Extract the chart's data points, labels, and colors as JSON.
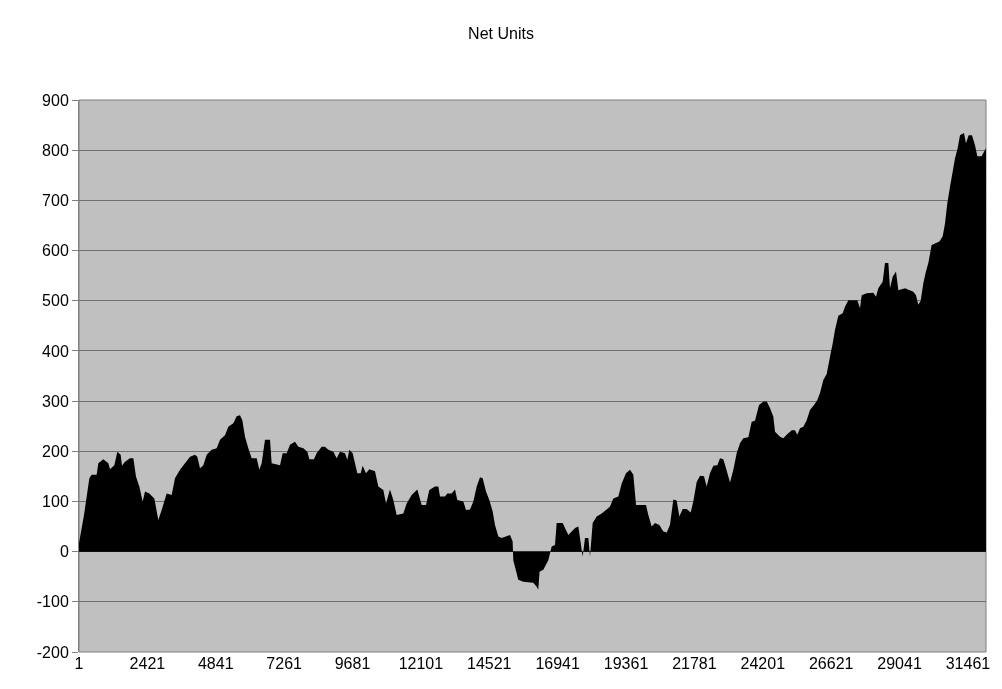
{
  "chart_data": {
    "type": "area",
    "title": "Net Units",
    "color": "#000000",
    "x": [
      1,
      96,
      178,
      367,
      449,
      626,
      685,
      862,
      1039,
      1098,
      1251,
      1358,
      1475,
      1522,
      1629,
      1806,
      1924,
      2019,
      2136,
      2254,
      2337,
      2490,
      2667,
      2808,
      2927,
      3104,
      3281,
      3398,
      3575,
      3753,
      3930,
      4106,
      4189,
      4283,
      4401,
      4520,
      4696,
      4873,
      4991,
      5168,
      5286,
      5463,
      5580,
      5699,
      5781,
      5876,
      5993,
      6112,
      6289,
      6383,
      6465,
      6583,
      6761,
      6819,
      7115,
      7209,
      7351,
      7468,
      7645,
      7764,
      7941,
      8082,
      8153,
      8317,
      8412,
      8589,
      8707,
      8825,
      9002,
      9120,
      9238,
      9415,
      9498,
      9568,
      9686,
      9769,
      9851,
      9969,
      10040,
      10158,
      10275,
      10476,
      10594,
      10771,
      10866,
      11007,
      11125,
      11243,
      11479,
      11597,
      11775,
      11974,
      12128,
      12281,
      12399,
      12600,
      12718,
      12777,
      12954,
      13036,
      13190,
      13308,
      13390,
      13603,
      13697,
      13839,
      13957,
      14075,
      14193,
      14287,
      14405,
      14522,
      14641,
      14723,
      14841,
      14960,
      15254,
      15348,
      15371,
      15547,
      15724,
      16078,
      16198,
      16255,
      16300,
      16433,
      16610,
      16729,
      16846,
      16905,
      17118,
      17201,
      17318,
      17437,
      17555,
      17672,
      17732,
      17826,
      17908,
      18027,
      18085,
      18180,
      18321,
      18498,
      18652,
      18794,
      18911,
      19088,
      19207,
      19359,
      19501,
      19619,
      19714,
      20068,
      20150,
      20268,
      20386,
      20539,
      20681,
      20799,
      20916,
      21035,
      21152,
      21247,
      21365,
      21507,
      21648,
      21742,
      21861,
      21979,
      22120,
      22214,
      22332,
      22451,
      22592,
      22687,
      22804,
      22899,
      23041,
      23158,
      23276,
      23394,
      23512,
      23689,
      23807,
      23925,
      24067,
      24220,
      24338,
      24456,
      24574,
      24633,
      24810,
      24928,
      25046,
      25223,
      25341,
      25423,
      25517,
      25636,
      25754,
      25871,
      26013,
      26131,
      26226,
      26343,
      26462,
      26580,
      26674,
      26757,
      26874,
      27028,
      27110,
      27229,
      27548,
      27641,
      27700,
      27877,
      28113,
      28207,
      28289,
      28443,
      28525,
      28644,
      28702,
      28797,
      28915,
      28998,
      29234,
      29528,
      29622,
      29704,
      29788,
      29882,
      29964,
      30059,
      30176,
      30295,
      30448,
      30566,
      30649,
      30731,
      30826,
      30920,
      31003,
      31097,
      31179,
      31321,
      31391,
      31486,
      31604,
      31711,
      31793,
      31946,
      32029,
      32099
    ],
    "values": [
      17,
      47,
      73,
      146,
      153,
      153,
      176,
      184,
      176,
      164,
      172,
      199,
      193,
      171,
      179,
      186,
      186,
      149,
      130,
      100,
      120,
      116,
      106,
      63,
      83,
      116,
      113,
      146,
      163,
      176,
      189,
      193,
      189,
      166,
      172,
      193,
      203,
      206,
      223,
      232,
      249,
      256,
      270,
      272,
      262,
      229,
      206,
      186,
      186,
      163,
      176,
      223,
      223,
      176,
      172,
      196,
      196,
      213,
      219,
      209,
      206,
      199,
      184,
      184,
      196,
      209,
      209,
      203,
      199,
      186,
      199,
      196,
      183,
      203,
      196,
      176,
      156,
      156,
      171,
      156,
      164,
      160,
      130,
      123,
      96,
      124,
      103,
      73,
      76,
      96,
      113,
      124,
      93,
      93,
      123,
      130,
      130,
      110,
      110,
      116,
      116,
      124,
      103,
      100,
      83,
      84,
      100,
      130,
      148,
      146,
      120,
      103,
      80,
      53,
      30,
      27,
      33,
      20,
      -17,
      -56,
      -60,
      -62,
      -70,
      -76,
      -40,
      -36,
      -17,
      10,
      13,
      57,
      57,
      47,
      33,
      40,
      47,
      50,
      27,
      -10,
      27,
      27,
      -10,
      57,
      70,
      76,
      83,
      90,
      106,
      110,
      136,
      156,
      163,
      153,
      93,
      93,
      73,
      50,
      57,
      53,
      40,
      38,
      53,
      104,
      102,
      70,
      85,
      85,
      78,
      100,
      139,
      151,
      150,
      130,
      156,
      171,
      172,
      186,
      184,
      166,
      138,
      163,
      196,
      216,
      226,
      228,
      259,
      261,
      292,
      299,
      299,
      286,
      269,
      239,
      229,
      226,
      233,
      242,
      242,
      233,
      246,
      249,
      262,
      282,
      292,
      302,
      316,
      342,
      354,
      389,
      415,
      442,
      470,
      475,
      488,
      501,
      501,
      485,
      511,
      515,
      516,
      508,
      525,
      538,
      575,
      575,
      525,
      548,
      558,
      521,
      525,
      518,
      511,
      492,
      500,
      535,
      556,
      575,
      611,
      614,
      618,
      628,
      654,
      694,
      727,
      757,
      784,
      804,
      830,
      834,
      814,
      830,
      830,
      810,
      788,
      788,
      797,
      804
    ],
    "xlim": [
      1,
      32100
    ],
    "xticks": [
      1,
      2421,
      4841,
      7261,
      9681,
      12101,
      14521,
      16941,
      19361,
      21781,
      24201,
      26621,
      29041,
      31461
    ],
    "ylim": [
      -200,
      900
    ],
    "yticks": [
      -200,
      -100,
      0,
      100,
      200,
      300,
      400,
      500,
      600,
      700,
      800,
      900
    ],
    "grid": "y"
  }
}
